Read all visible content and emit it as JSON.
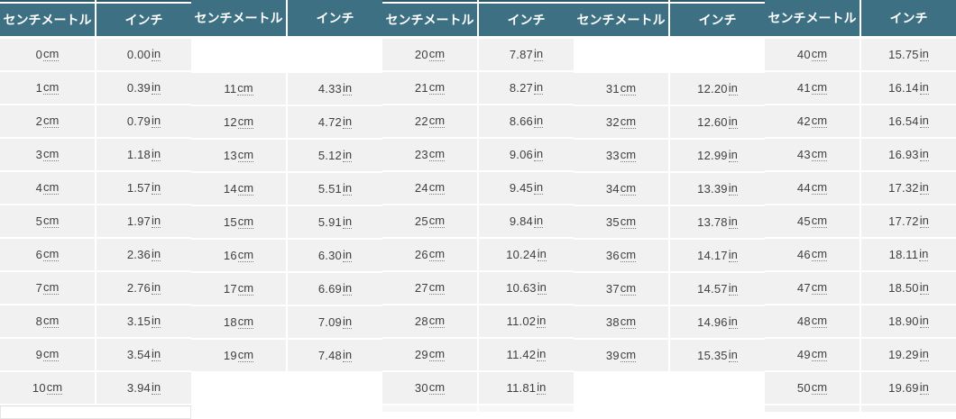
{
  "columns": {
    "cm_label": "センチメートル",
    "in_label": "インチ"
  },
  "units": {
    "cm": "cm",
    "in": "in"
  },
  "colors": {
    "header_bg": "#3e7083",
    "header_top_strip": "#30596c",
    "header_text": "#ffffff",
    "row_bg": "#f1f1f1",
    "cell_text": "#404040",
    "page_bg": "#ffffff"
  },
  "tables": [
    {
      "name": "cm-to-in-table-0-10",
      "top_strip": true,
      "vertical_offset": false,
      "bottom_artifact": "ghost",
      "rows": [
        {
          "cm": "0",
          "in": "0.00"
        },
        {
          "cm": "1",
          "in": "0.39"
        },
        {
          "cm": "2",
          "in": "0.79"
        },
        {
          "cm": "3",
          "in": "1.18"
        },
        {
          "cm": "4",
          "in": "1.57"
        },
        {
          "cm": "5",
          "in": "1.97"
        },
        {
          "cm": "6",
          "in": "2.36"
        },
        {
          "cm": "7",
          "in": "2.76"
        },
        {
          "cm": "8",
          "in": "3.15"
        },
        {
          "cm": "9",
          "in": "3.54"
        },
        {
          "cm": "10",
          "in": "3.94"
        }
      ]
    },
    {
      "name": "cm-to-in-table-11-19",
      "top_strip": false,
      "vertical_offset": true,
      "bottom_artifact": "none",
      "rows": [
        {
          "cm": "11",
          "in": "4.33"
        },
        {
          "cm": "12",
          "in": "4.72"
        },
        {
          "cm": "13",
          "in": "5.12"
        },
        {
          "cm": "14",
          "in": "5.51"
        },
        {
          "cm": "15",
          "in": "5.91"
        },
        {
          "cm": "16",
          "in": "6.30"
        },
        {
          "cm": "17",
          "in": "6.69"
        },
        {
          "cm": "18",
          "in": "7.09"
        },
        {
          "cm": "19",
          "in": "7.48"
        }
      ]
    },
    {
      "name": "cm-to-in-table-20-30",
      "top_strip": true,
      "vertical_offset": false,
      "bottom_artifact": "faint-sliver",
      "rows": [
        {
          "cm": "20",
          "in": "7.87"
        },
        {
          "cm": "21",
          "in": "8.27"
        },
        {
          "cm": "22",
          "in": "8.66"
        },
        {
          "cm": "23",
          "in": "9.06"
        },
        {
          "cm": "24",
          "in": "9.45"
        },
        {
          "cm": "25",
          "in": "9.84"
        },
        {
          "cm": "26",
          "in": "10.24"
        },
        {
          "cm": "27",
          "in": "10.63"
        },
        {
          "cm": "28",
          "in": "11.02"
        },
        {
          "cm": "29",
          "in": "11.42"
        },
        {
          "cm": "30",
          "in": "11.81"
        }
      ]
    },
    {
      "name": "cm-to-in-table-31-39",
      "top_strip": true,
      "vertical_offset": true,
      "bottom_artifact": "none",
      "rows": [
        {
          "cm": "31",
          "in": "12.20"
        },
        {
          "cm": "32",
          "in": "12.60"
        },
        {
          "cm": "33",
          "in": "12.99"
        },
        {
          "cm": "34",
          "in": "13.39"
        },
        {
          "cm": "35",
          "in": "13.78"
        },
        {
          "cm": "36",
          "in": "14.17"
        },
        {
          "cm": "37",
          "in": "14.57"
        },
        {
          "cm": "38",
          "in": "14.96"
        },
        {
          "cm": "39",
          "in": "15.35"
        }
      ]
    },
    {
      "name": "cm-to-in-table-40-50",
      "top_strip": false,
      "vertical_offset": false,
      "bottom_artifact": "sliver",
      "rows": [
        {
          "cm": "40",
          "in": "15.75"
        },
        {
          "cm": "41",
          "in": "16.14"
        },
        {
          "cm": "42",
          "in": "16.54"
        },
        {
          "cm": "43",
          "in": "16.93"
        },
        {
          "cm": "44",
          "in": "17.32"
        },
        {
          "cm": "45",
          "in": "17.72"
        },
        {
          "cm": "46",
          "in": "18.11"
        },
        {
          "cm": "47",
          "in": "18.50"
        },
        {
          "cm": "48",
          "in": "18.90"
        },
        {
          "cm": "49",
          "in": "19.29"
        },
        {
          "cm": "50",
          "in": "19.69"
        }
      ]
    }
  ]
}
